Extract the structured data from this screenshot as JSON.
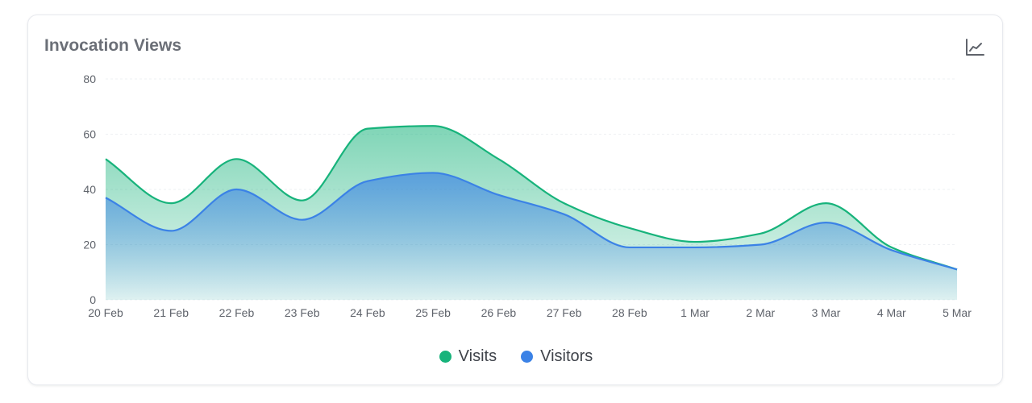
{
  "header": {
    "title": "Invocation Views",
    "icon": "line-chart-icon"
  },
  "colors": {
    "visits": "#17b37b",
    "visitors": "#3b82e6",
    "grid": "#eef0f3",
    "axis_text": "#5f636b"
  },
  "chart_data": {
    "type": "area",
    "title": "Invocation Views",
    "xlabel": "",
    "ylabel": "",
    "categories": [
      "20 Feb",
      "21 Feb",
      "22 Feb",
      "23 Feb",
      "24 Feb",
      "25 Feb",
      "26 Feb",
      "27 Feb",
      "28 Feb",
      "1 Mar",
      "2 Mar",
      "3 Mar",
      "4 Mar",
      "5 Mar"
    ],
    "ylim": [
      0,
      80
    ],
    "yticks": [
      0,
      20,
      40,
      60,
      80
    ],
    "grid": true,
    "legend_position": "bottom-center",
    "series": [
      {
        "name": "Visits",
        "values": [
          51,
          35,
          51,
          36,
          62,
          63,
          51,
          35,
          26,
          21,
          24,
          35,
          19,
          11
        ]
      },
      {
        "name": "Visitors",
        "values": [
          37,
          25,
          40,
          29,
          43,
          46,
          38,
          31,
          19,
          19,
          20,
          28,
          18,
          11
        ]
      }
    ]
  }
}
